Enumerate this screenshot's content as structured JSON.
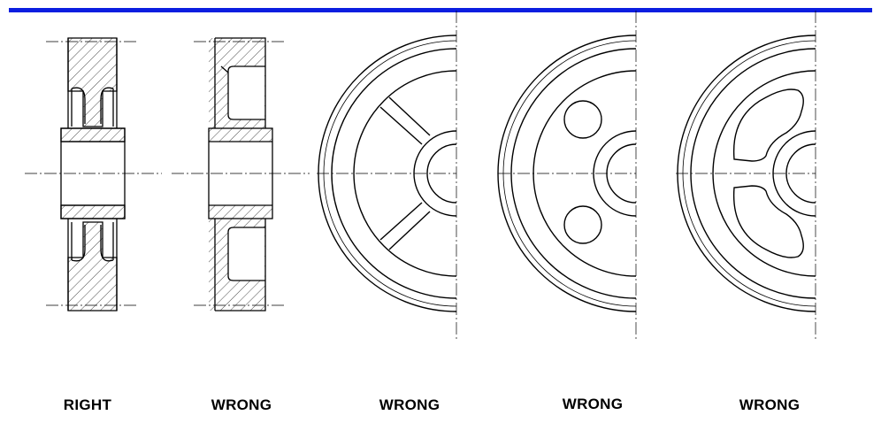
{
  "colors": {
    "rule": "#0b1ee0",
    "ink": "#000000",
    "background": "#ffffff"
  },
  "captions": [
    "RIGHT",
    "WRONG",
    "WRONG",
    "WRONG",
    "WRONG"
  ],
  "views": [
    {
      "kind": "section-view",
      "variant": "web section not hatched"
    },
    {
      "kind": "section-view",
      "variant": "web section hatched"
    },
    {
      "kind": "half-end-view",
      "variant": "spokes"
    },
    {
      "kind": "half-end-view",
      "variant": "circular holes"
    },
    {
      "kind": "half-end-view",
      "variant": "kidney slots"
    }
  ]
}
